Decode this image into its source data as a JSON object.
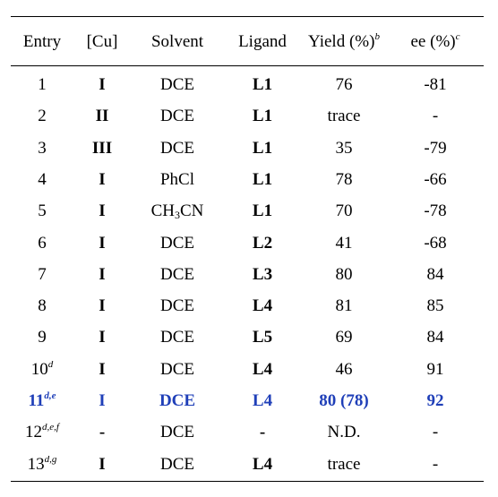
{
  "headers": {
    "entry": "Entry",
    "cu": "[Cu]",
    "solvent": "Solvent",
    "ligand": "Ligand",
    "yield": "Yield (%)",
    "yield_note": "b",
    "ee": "ee (%)",
    "ee_note": "c"
  },
  "rows": [
    {
      "entry": "1",
      "note": "",
      "cu": "I",
      "solvent_a": "DCE",
      "solvent_sub": "",
      "solvent_b": "",
      "ligand": "L1",
      "yield": "76",
      "ee": "-81"
    },
    {
      "entry": "2",
      "note": "",
      "cu": "II",
      "solvent_a": "DCE",
      "solvent_sub": "",
      "solvent_b": "",
      "ligand": "L1",
      "yield": "trace",
      "ee": "-"
    },
    {
      "entry": "3",
      "note": "",
      "cu": "III",
      "solvent_a": "DCE",
      "solvent_sub": "",
      "solvent_b": "",
      "ligand": "L1",
      "yield": "35",
      "ee": "-79"
    },
    {
      "entry": "4",
      "note": "",
      "cu": "I",
      "solvent_a": "PhCl",
      "solvent_sub": "",
      "solvent_b": "",
      "ligand": "L1",
      "yield": "78",
      "ee": "-66"
    },
    {
      "entry": "5",
      "note": "",
      "cu": "I",
      "solvent_a": "CH",
      "solvent_sub": "3",
      "solvent_b": "CN",
      "ligand": "L1",
      "yield": "70",
      "ee": "-78"
    },
    {
      "entry": "6",
      "note": "",
      "cu": "I",
      "solvent_a": "DCE",
      "solvent_sub": "",
      "solvent_b": "",
      "ligand": "L2",
      "yield": "41",
      "ee": "-68"
    },
    {
      "entry": "7",
      "note": "",
      "cu": "I",
      "solvent_a": "DCE",
      "solvent_sub": "",
      "solvent_b": "",
      "ligand": "L3",
      "yield": "80",
      "ee": "84"
    },
    {
      "entry": "8",
      "note": "",
      "cu": "I",
      "solvent_a": "DCE",
      "solvent_sub": "",
      "solvent_b": "",
      "ligand": "L4",
      "yield": "81",
      "ee": "85"
    },
    {
      "entry": "9",
      "note": "",
      "cu": "I",
      "solvent_a": "DCE",
      "solvent_sub": "",
      "solvent_b": "",
      "ligand": "L5",
      "yield": "69",
      "ee": "84"
    },
    {
      "entry": "10",
      "note": "d",
      "cu": "I",
      "solvent_a": "DCE",
      "solvent_sub": "",
      "solvent_b": "",
      "ligand": "L4",
      "yield": "46",
      "ee": "91"
    },
    {
      "entry": "11",
      "note": "d,e",
      "cu": "I",
      "solvent_a": "DCE",
      "solvent_sub": "",
      "solvent_b": "",
      "ligand": "L4",
      "yield": "80 (78)",
      "ee": "92",
      "highlight": true
    },
    {
      "entry": "12",
      "note": "d,e,f",
      "cu": "-",
      "solvent_a": "DCE",
      "solvent_sub": "",
      "solvent_b": "",
      "ligand": "-",
      "yield": "N.D.",
      "ee": "-"
    },
    {
      "entry": "13",
      "note": "d,g",
      "cu": "I",
      "solvent_a": "DCE",
      "solvent_sub": "",
      "solvent_b": "",
      "ligand": "L4",
      "yield": "trace",
      "ee": "-"
    }
  ],
  "colors": {
    "text": "#000000",
    "highlight": "#1f3fb8",
    "rule": "#000000"
  }
}
